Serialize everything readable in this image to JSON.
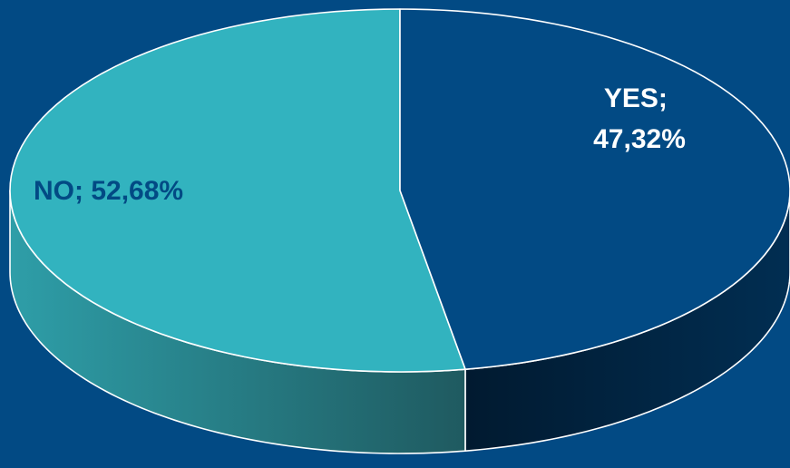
{
  "chart_data": {
    "type": "pie",
    "style": "3d",
    "slices": [
      {
        "category": "YES",
        "value": 47.32,
        "label_lines": [
          "YES;",
          "47,32%"
        ],
        "color": "#024a84",
        "side_color_light": "#012e52",
        "side_color_dark": "#011a30",
        "label_color": "#ffffff"
      },
      {
        "category": "NO",
        "value": 52.68,
        "label_lines": [
          "NO; 52,68%"
        ],
        "color": "#32b3bf",
        "side_color_light": "#2e9ea8",
        "side_color_dark": "#1f5a60",
        "label_color": "#024a84"
      }
    ],
    "background": "#024a84",
    "outline": "#ffffff",
    "legend": "none"
  }
}
